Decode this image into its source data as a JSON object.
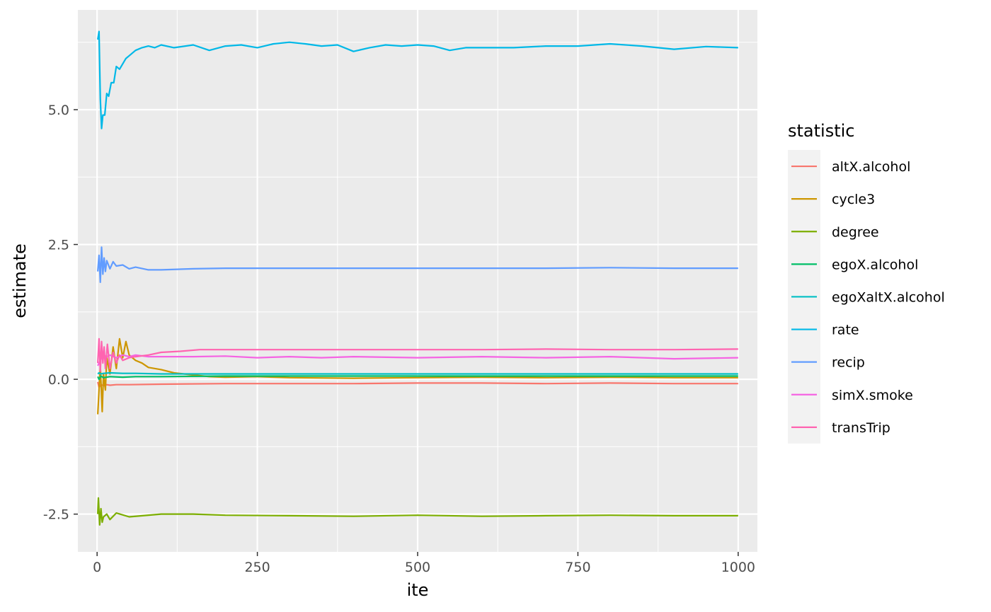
{
  "chart_data": {
    "type": "line",
    "title": "",
    "xlabel": "ite",
    "ylabel": "estimate",
    "xlim": [
      -30,
      1030
    ],
    "ylim": [
      -3.2,
      6.85
    ],
    "x_ticks": [
      0,
      250,
      500,
      750,
      1000
    ],
    "x_tick_labels": [
      "0",
      "250",
      "500",
      "750",
      "1000"
    ],
    "y_ticks": [
      -2.5,
      0.0,
      2.5,
      5.0
    ],
    "y_tick_labels": [
      "-2.5",
      "0.0",
      "2.5",
      "5.0"
    ],
    "grid": true,
    "background": "#ebebeb",
    "legend": {
      "title": "statistic",
      "position": "right"
    },
    "series": [
      {
        "name": "altX.alcohol",
        "color": "#F8766D",
        "x": [
          1,
          3,
          6,
          10,
          15,
          20,
          30,
          50,
          100,
          200,
          300,
          400,
          500,
          600,
          700,
          800,
          900,
          1000
        ],
        "y": [
          -0.05,
          -0.15,
          -0.1,
          -0.12,
          -0.1,
          -0.11,
          -0.1,
          -0.1,
          -0.09,
          -0.08,
          -0.08,
          -0.08,
          -0.07,
          -0.07,
          -0.08,
          -0.07,
          -0.08,
          -0.08
        ]
      },
      {
        "name": "cycle3",
        "color": "#CD9600",
        "x": [
          1,
          3,
          5,
          8,
          10,
          13,
          15,
          20,
          25,
          30,
          35,
          40,
          45,
          50,
          60,
          70,
          80,
          100,
          120,
          150,
          175,
          200,
          250,
          300,
          400,
          500,
          600,
          700,
          800,
          900,
          1000
        ],
        "y": [
          -0.65,
          -0.2,
          0.25,
          -0.6,
          0.1,
          -0.2,
          0.4,
          0.1,
          0.6,
          0.2,
          0.75,
          0.4,
          0.7,
          0.45,
          0.35,
          0.3,
          0.22,
          0.18,
          0.12,
          0.08,
          0.05,
          0.04,
          0.05,
          0.03,
          0.02,
          0.03,
          0.04,
          0.03,
          0.04,
          0.03,
          0.03
        ]
      },
      {
        "name": "degree",
        "color": "#7CAE00",
        "x": [
          1,
          2,
          4,
          6,
          8,
          10,
          15,
          20,
          30,
          50,
          100,
          150,
          200,
          300,
          400,
          500,
          600,
          700,
          800,
          900,
          1000
        ],
        "y": [
          -2.5,
          -2.2,
          -2.7,
          -2.4,
          -2.65,
          -2.55,
          -2.5,
          -2.6,
          -2.48,
          -2.55,
          -2.5,
          -2.5,
          -2.52,
          -2.53,
          -2.54,
          -2.52,
          -2.54,
          -2.53,
          -2.52,
          -2.53,
          -2.53
        ]
      },
      {
        "name": "egoX.alcohol",
        "color": "#00BE67",
        "x": [
          1,
          3,
          6,
          10,
          20,
          40,
          60,
          100,
          200,
          300,
          400,
          500,
          600,
          700,
          800,
          900,
          1000
        ],
        "y": [
          0.05,
          0.0,
          0.06,
          0.03,
          0.05,
          0.04,
          0.05,
          0.05,
          0.06,
          0.06,
          0.06,
          0.06,
          0.06,
          0.06,
          0.06,
          0.06,
          0.06
        ]
      },
      {
        "name": "egoXaltX.alcohol",
        "color": "#00BFC4",
        "x": [
          1,
          3,
          6,
          10,
          20,
          40,
          60,
          100,
          200,
          300,
          400,
          500,
          600,
          700,
          800,
          900,
          1000
        ],
        "y": [
          0.1,
          0.12,
          0.1,
          0.11,
          0.12,
          0.11,
          0.11,
          0.1,
          0.1,
          0.1,
          0.1,
          0.1,
          0.1,
          0.1,
          0.1,
          0.1,
          0.1
        ]
      },
      {
        "name": "rate",
        "color": "#00B8E7",
        "x": [
          1,
          3,
          5,
          7,
          9,
          12,
          15,
          18,
          22,
          26,
          30,
          35,
          40,
          45,
          50,
          60,
          70,
          80,
          90,
          100,
          120,
          150,
          175,
          200,
          225,
          250,
          275,
          300,
          325,
          350,
          375,
          400,
          425,
          450,
          475,
          500,
          525,
          550,
          575,
          600,
          650,
          700,
          750,
          800,
          850,
          900,
          950,
          1000
        ],
        "y": [
          6.3,
          6.45,
          5.2,
          4.65,
          4.9,
          4.9,
          5.3,
          5.25,
          5.5,
          5.5,
          5.8,
          5.75,
          5.85,
          5.95,
          6.0,
          6.1,
          6.15,
          6.18,
          6.15,
          6.2,
          6.15,
          6.2,
          6.1,
          6.18,
          6.2,
          6.15,
          6.22,
          6.25,
          6.22,
          6.18,
          6.2,
          6.08,
          6.15,
          6.2,
          6.18,
          6.2,
          6.18,
          6.1,
          6.15,
          6.15,
          6.15,
          6.18,
          6.18,
          6.22,
          6.18,
          6.12,
          6.17,
          6.15
        ]
      },
      {
        "name": "recip",
        "color": "#619CFF",
        "x": [
          1,
          3,
          5,
          7,
          9,
          11,
          13,
          15,
          20,
          25,
          30,
          40,
          50,
          60,
          80,
          100,
          150,
          200,
          300,
          400,
          500,
          600,
          700,
          800,
          900,
          1000
        ],
        "y": [
          2.0,
          2.3,
          1.8,
          2.45,
          1.95,
          2.25,
          2.0,
          2.2,
          2.05,
          2.18,
          2.1,
          2.12,
          2.05,
          2.08,
          2.03,
          2.03,
          2.05,
          2.06,
          2.06,
          2.06,
          2.06,
          2.06,
          2.06,
          2.07,
          2.06,
          2.06
        ]
      },
      {
        "name": "simX.smoke",
        "color": "#F564E3",
        "x": [
          1,
          5,
          10,
          15,
          20,
          30,
          40,
          50,
          60,
          80,
          100,
          150,
          200,
          250,
          300,
          350,
          400,
          500,
          600,
          700,
          800,
          900,
          1000
        ],
        "y": [
          0.25,
          0.35,
          0.45,
          0.42,
          0.45,
          0.4,
          0.45,
          0.42,
          0.45,
          0.42,
          0.42,
          0.42,
          0.43,
          0.4,
          0.42,
          0.4,
          0.42,
          0.4,
          0.42,
          0.4,
          0.42,
          0.38,
          0.4
        ]
      },
      {
        "name": "transTrip",
        "color": "#FF64B0",
        "x": [
          1,
          3,
          5,
          7,
          9,
          11,
          13,
          16,
          20,
          25,
          30,
          35,
          40,
          50,
          60,
          80,
          100,
          130,
          160,
          200,
          250,
          300,
          400,
          500,
          600,
          700,
          800,
          900,
          1000
        ],
        "y": [
          0.3,
          0.75,
          0.15,
          0.7,
          0.3,
          0.6,
          0.2,
          0.65,
          0.2,
          0.5,
          0.3,
          0.45,
          0.35,
          0.4,
          0.42,
          0.45,
          0.5,
          0.52,
          0.55,
          0.55,
          0.55,
          0.55,
          0.55,
          0.55,
          0.55,
          0.56,
          0.55,
          0.55,
          0.56
        ]
      }
    ]
  }
}
